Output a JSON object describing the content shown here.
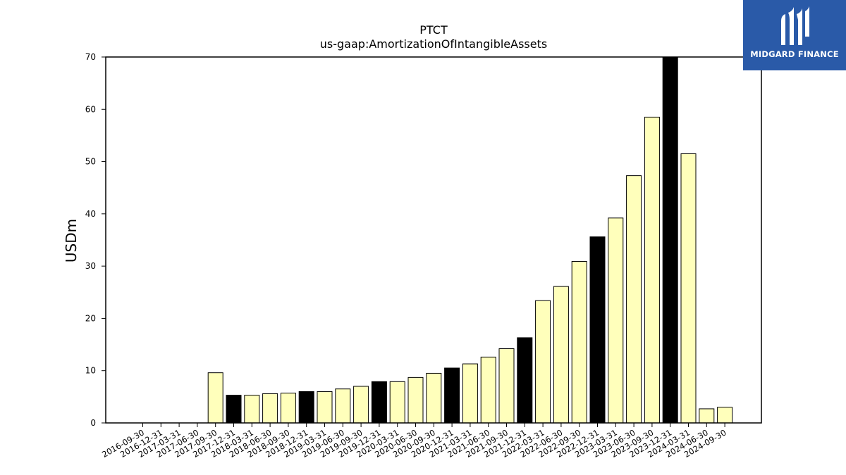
{
  "chart_data": {
    "type": "bar",
    "title": "PTCT",
    "subtitle": "us-gaap:AmortizationOfIntangibleAssets",
    "xlabel": "",
    "ylabel": "USDm",
    "ylim": [
      0,
      70
    ],
    "yticks": [
      0,
      10,
      20,
      30,
      40,
      50,
      60,
      70
    ],
    "grid": false,
    "categories": [
      "2016-09-30",
      "2016-12-31",
      "2017-03-31",
      "2017-06-30",
      "2017-09-30",
      "2017-12-31",
      "2018-03-31",
      "2018-06-30",
      "2018-09-30",
      "2018-12-31",
      "2019-03-31",
      "2019-06-30",
      "2019-09-30",
      "2019-12-31",
      "2020-03-31",
      "2020-06-30",
      "2020-09-30",
      "2020-12-31",
      "2021-03-31",
      "2021-06-30",
      "2021-09-30",
      "2021-12-31",
      "2022-03-31",
      "2022-06-30",
      "2022-09-30",
      "2022-12-31",
      "2023-03-31",
      "2023-06-30",
      "2023-09-30",
      "2023-12-31",
      "2024-03-31",
      "2024-06-30",
      "2024-09-30"
    ],
    "values": [
      null,
      null,
      null,
      null,
      9.6,
      5.3,
      5.3,
      5.6,
      5.7,
      6.0,
      6.0,
      6.5,
      7.0,
      7.9,
      7.9,
      8.7,
      9.5,
      10.5,
      11.3,
      12.6,
      14.2,
      16.3,
      23.4,
      26.1,
      30.9,
      35.6,
      39.2,
      47.3,
      58.5,
      70.5,
      51.5,
      2.7,
      3.0
    ],
    "colors": {
      "quarter": "#ffffbb",
      "year_end": "#000000",
      "edge": "#000000"
    }
  },
  "logo": {
    "text": "MIDGARD FINANCE",
    "icon": "midgard-logo-icon",
    "background": "#2a5aa8"
  }
}
